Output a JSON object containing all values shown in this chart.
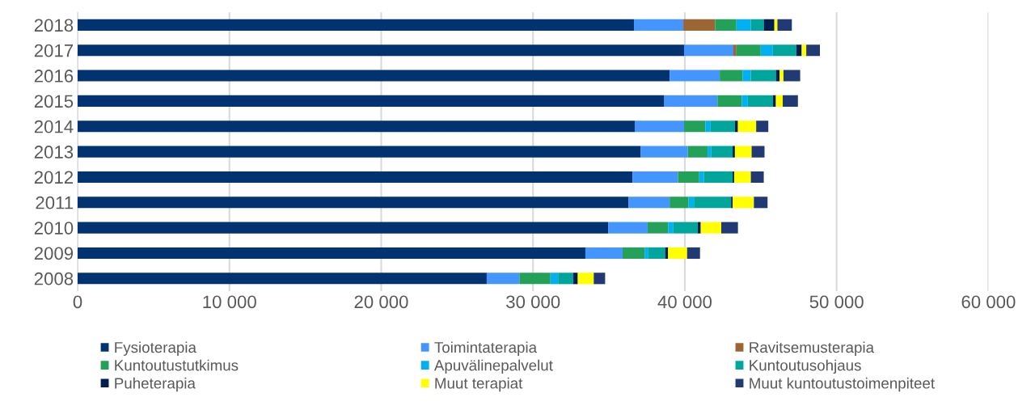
{
  "chart_data": {
    "type": "bar",
    "orientation": "horizontal",
    "stacked": true,
    "categories": [
      "2018",
      "2017",
      "2016",
      "2015",
      "2014",
      "2013",
      "2012",
      "2011",
      "2010",
      "2009",
      "2008"
    ],
    "series": [
      {
        "name": "Fysioterapia",
        "color": "#003370",
        "values": [
          36650,
          39950,
          39000,
          38650,
          36700,
          37100,
          36550,
          36300,
          34950,
          33450,
          26950
        ]
      },
      {
        "name": "Toimintaterapia",
        "color": "#4495fe",
        "values": [
          3250,
          3250,
          3300,
          3500,
          3250,
          3100,
          3000,
          2700,
          2600,
          2450,
          2150
        ]
      },
      {
        "name": "Ravitsemusterapia",
        "color": "#9b6534",
        "values": [
          2100,
          200,
          0,
          0,
          0,
          0,
          0,
          0,
          0,
          0,
          0
        ]
      },
      {
        "name": "Kuntoutustutkimus",
        "color": "#23a158",
        "values": [
          1400,
          1600,
          1500,
          1600,
          1400,
          1300,
          1400,
          1250,
          1350,
          1450,
          2050
        ]
      },
      {
        "name": "Apuvälinepalvelut",
        "color": "#00b0f0",
        "values": [
          950,
          800,
          550,
          400,
          350,
          250,
          300,
          350,
          350,
          250,
          500
        ]
      },
      {
        "name": "Kuntoutusohjaus",
        "color": "#00a59c",
        "values": [
          850,
          1550,
          1650,
          1650,
          1600,
          1400,
          1900,
          2450,
          1600,
          1100,
          1000
        ]
      },
      {
        "name": "Puheterapia",
        "color": "#001f4d",
        "values": [
          700,
          350,
          250,
          200,
          200,
          150,
          100,
          100,
          200,
          200,
          300
        ]
      },
      {
        "name": "Muut terapiat",
        "color": "#ffff00",
        "values": [
          200,
          300,
          250,
          450,
          1200,
          1100,
          1100,
          1400,
          1350,
          1250,
          1050
        ]
      },
      {
        "name": "Muut kuntoutustoimenpiteet",
        "color": "#223a74",
        "values": [
          950,
          900,
          1100,
          1000,
          800,
          850,
          850,
          900,
          1100,
          850,
          750
        ]
      }
    ],
    "xlim": [
      0,
      60000
    ],
    "xticks": [
      {
        "value": 0,
        "label": "0"
      },
      {
        "value": 10000,
        "label": "10 000"
      },
      {
        "value": 20000,
        "label": "20 000"
      },
      {
        "value": 30000,
        "label": "30 000"
      },
      {
        "value": 40000,
        "label": "40 000"
      },
      {
        "value": 50000,
        "label": "50 000"
      },
      {
        "value": 60000,
        "label": "60 000"
      }
    ],
    "grid": "x",
    "legend": "bottom"
  }
}
